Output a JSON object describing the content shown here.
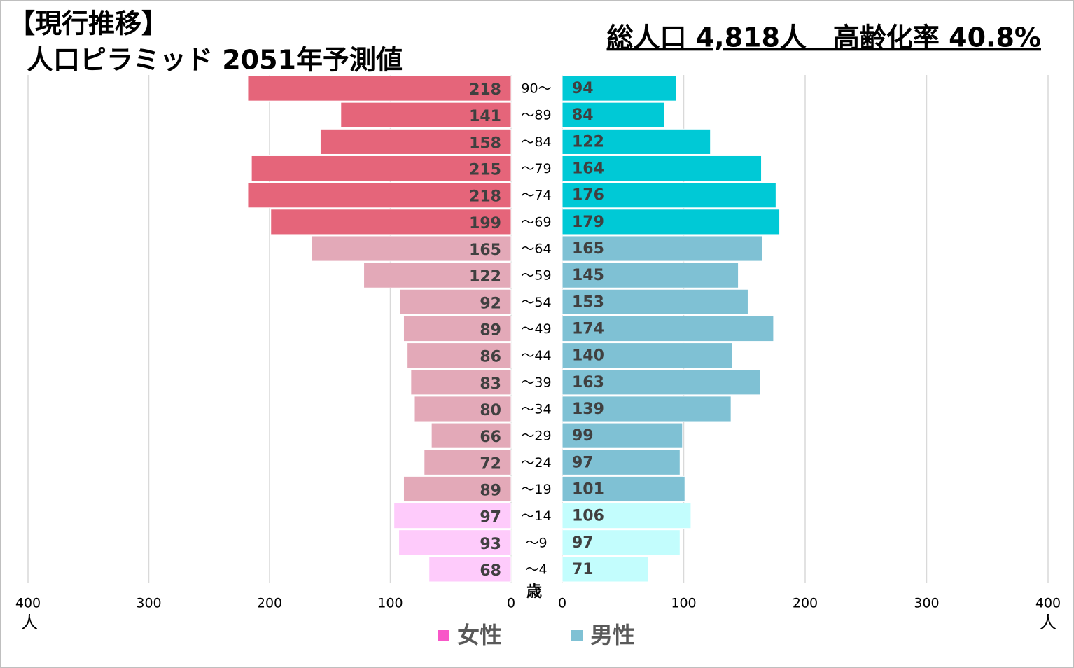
{
  "chart_data": {
    "type": "pyramid",
    "title": "【現行推移】",
    "subtitle": "人口ピラミッド 2051年予測値",
    "annotation": "総人口 4,818人　高齢化率 40.8%",
    "ylabel": "歳",
    "xlabel": "人",
    "categories": [
      "90〜",
      "〜89",
      "〜84",
      "〜79",
      "〜74",
      "〜69",
      "〜64",
      "〜59",
      "〜54",
      "〜49",
      "〜44",
      "〜39",
      "〜34",
      "〜29",
      "〜24",
      "〜19",
      "〜14",
      "〜9",
      "〜4"
    ],
    "series": [
      {
        "name": "女性",
        "side": "left",
        "color": "#f857c8",
        "colors": [
          "#e5657a",
          "#e5657a",
          "#e5657a",
          "#e5657a",
          "#e5657a",
          "#e5657a",
          "#e3a9b8",
          "#e3a9b8",
          "#e3a9b8",
          "#e3a9b8",
          "#e3a9b8",
          "#e3a9b8",
          "#e3a9b8",
          "#e3a9b8",
          "#e3a9b8",
          "#e3a9b8",
          "#fecbfb",
          "#fecbfb",
          "#fecbfb"
        ],
        "values": [
          218,
          141,
          158,
          215,
          218,
          199,
          165,
          122,
          92,
          89,
          86,
          83,
          80,
          66,
          72,
          89,
          97,
          93,
          68
        ]
      },
      {
        "name": "男性",
        "side": "right",
        "color": "#7fc1d4",
        "colors": [
          "#00c9d6",
          "#00c9d6",
          "#00c9d6",
          "#00c9d6",
          "#00c9d6",
          "#00c9d6",
          "#7fc1d4",
          "#7fc1d4",
          "#7fc1d4",
          "#7fc1d4",
          "#7fc1d4",
          "#7fc1d4",
          "#7fc1d4",
          "#7fc1d4",
          "#7fc1d4",
          "#7fc1d4",
          "#c3fdfd",
          "#c3fdfd",
          "#c3fdfd"
        ],
        "values": [
          94,
          84,
          122,
          164,
          176,
          179,
          165,
          145,
          153,
          174,
          140,
          163,
          139,
          99,
          97,
          101,
          106,
          97,
          71
        ]
      }
    ],
    "xlim": [
      0,
      400
    ],
    "xticks": [
      0,
      100,
      200,
      300,
      400
    ],
    "grid": true,
    "legend": "bottom"
  }
}
